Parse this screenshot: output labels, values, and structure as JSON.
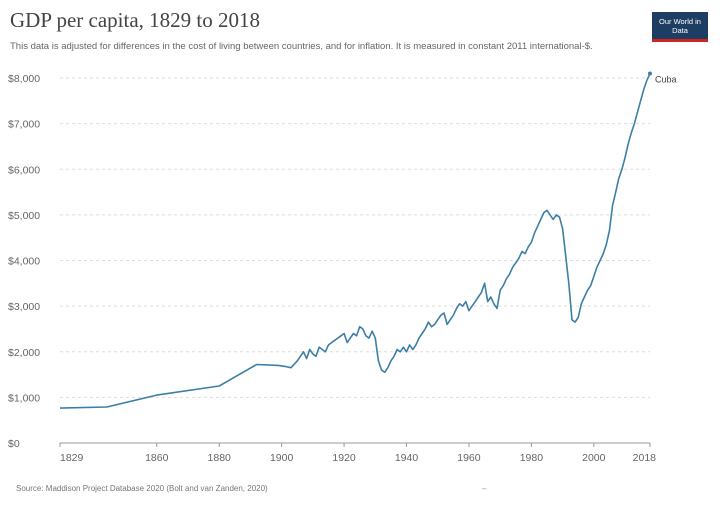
{
  "header": {
    "title": "GDP per capita, 1829 to 2018",
    "subtitle": "This data is adjusted for differences in the cost of living between countries, and for inflation. It is measured in constant 2011 international-$.",
    "logo_text": "Our World in Data"
  },
  "footer": {
    "source": "Source: Maddison Project Database 2020 (Bolt and van Zanden, 2020)",
    "extra": "–"
  },
  "colors": {
    "line": "#3d7ea6",
    "grid": "#dddddd",
    "axis": "#999999",
    "logo_bg": "#1d3d63",
    "logo_accent": "#ce261e"
  },
  "chart_data": {
    "type": "line",
    "title": "GDP per capita, 1829 to 2018",
    "xlabel": "",
    "ylabel": "",
    "xlim": [
      1829,
      2018
    ],
    "ylim": [
      0,
      8000
    ],
    "y_ticks": [
      "$0",
      "$1,000",
      "$2,000",
      "$3,000",
      "$4,000",
      "$5,000",
      "$6,000",
      "$7,000",
      "$8,000"
    ],
    "y_tick_values": [
      0,
      1000,
      2000,
      3000,
      4000,
      5000,
      6000,
      7000,
      8000
    ],
    "x_ticks": [
      "1829",
      "1860",
      "1880",
      "1900",
      "1920",
      "1940",
      "1960",
      "1980",
      "2000",
      "2018"
    ],
    "x_tick_values": [
      1829,
      1860,
      1880,
      1900,
      1920,
      1940,
      1960,
      1980,
      2000,
      2018
    ],
    "grid": true,
    "series": [
      {
        "name": "Cuba",
        "x": [
          1829,
          1844,
          1860,
          1880,
          1892,
          1899,
          1901,
          1903,
          1905,
          1906,
          1907,
          1908,
          1909,
          1910,
          1911,
          1912,
          1913,
          1914,
          1915,
          1916,
          1917,
          1918,
          1919,
          1920,
          1921,
          1922,
          1923,
          1924,
          1925,
          1926,
          1927,
          1928,
          1929,
          1930,
          1931,
          1932,
          1933,
          1934,
          1935,
          1936,
          1937,
          1938,
          1939,
          1940,
          1941,
          1942,
          1943,
          1944,
          1945,
          1946,
          1947,
          1948,
          1949,
          1950,
          1951,
          1952,
          1953,
          1954,
          1955,
          1956,
          1957,
          1958,
          1959,
          1960,
          1961,
          1962,
          1963,
          1964,
          1965,
          1966,
          1967,
          1968,
          1969,
          1970,
          1971,
          1972,
          1973,
          1974,
          1975,
          1976,
          1977,
          1978,
          1979,
          1980,
          1981,
          1982,
          1983,
          1984,
          1985,
          1986,
          1987,
          1988,
          1989,
          1990,
          1991,
          1992,
          1993,
          1994,
          1995,
          1996,
          1997,
          1998,
          1999,
          2000,
          2001,
          2002,
          2003,
          2004,
          2005,
          2006,
          2007,
          2008,
          2009,
          2010,
          2011,
          2012,
          2013,
          2014,
          2015,
          2016,
          2017,
          2018
        ],
        "values": [
          765,
          790,
          1050,
          1250,
          1720,
          1700,
          1680,
          1650,
          1800,
          1900,
          2000,
          1850,
          2050,
          1950,
          1900,
          2100,
          2050,
          2000,
          2150,
          2200,
          2250,
          2300,
          2350,
          2400,
          2200,
          2300,
          2400,
          2350,
          2550,
          2500,
          2350,
          2300,
          2450,
          2300,
          1800,
          1600,
          1550,
          1650,
          1800,
          1900,
          2050,
          2000,
          2100,
          2000,
          2150,
          2050,
          2150,
          2300,
          2400,
          2500,
          2650,
          2550,
          2600,
          2700,
          2800,
          2850,
          2600,
          2700,
          2800,
          2950,
          3050,
          3000,
          3100,
          2900,
          3000,
          3100,
          3200,
          3300,
          3500,
          3100,
          3200,
          3050,
          2950,
          3350,
          3450,
          3600,
          3700,
          3850,
          3950,
          4050,
          4200,
          4150,
          4300,
          4400,
          4600,
          4750,
          4900,
          5050,
          5100,
          5000,
          4900,
          5000,
          4950,
          4700,
          4100,
          3500,
          2700,
          2650,
          2750,
          3050,
          3200,
          3350,
          3450,
          3650,
          3850,
          4000,
          4150,
          4350,
          4650,
          5200,
          5500,
          5800,
          6000,
          6250,
          6550,
          6800,
          7000,
          7250,
          7500,
          7750,
          7950,
          8100
        ]
      }
    ]
  }
}
